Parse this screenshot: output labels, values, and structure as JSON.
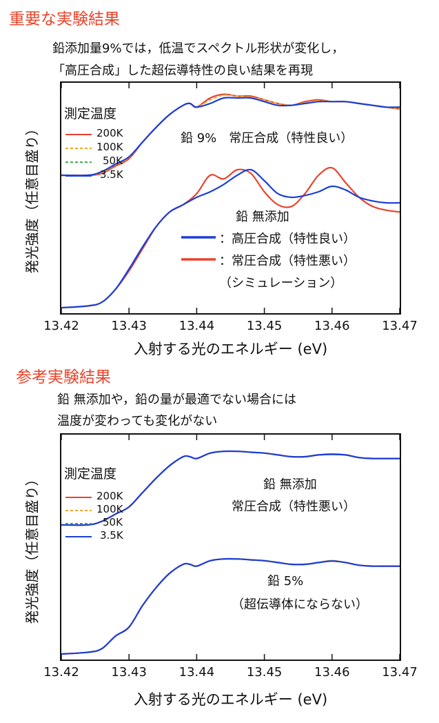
{
  "sections": [
    {
      "heading": "重要な実験結果",
      "caption_lines": [
        "鉛添加量9%では，低温でスペクトル形状が変化し，",
        "「高圧合成」した超伝導特性の良い結果を再現"
      ]
    },
    {
      "heading": "参考実験結果",
      "caption_lines": [
        "鉛 無添加や，鉛の量が最適でない場合には",
        "温度が変わっても変化がない"
      ]
    }
  ],
  "colors": {
    "heading": "#e8432a",
    "red": "#e8432a",
    "orange": "#f5a623",
    "green": "#3bb34a",
    "blue": "#1a3fd6",
    "frame": "#111111"
  },
  "chart_data": [
    {
      "type": "line",
      "title": "",
      "xlabel": "入射する光のエネルギー (eV)",
      "ylabel": "発光強度（任意目盛り）",
      "xlim": [
        13.42,
        13.47
      ],
      "ylim": [
        0,
        1.2
      ],
      "xticks": [
        "13.42",
        "13.43",
        "13.44",
        "13.45",
        "13.46",
        "13.47"
      ],
      "legend_title": "測定温度",
      "legend": [
        {
          "label": "200K",
          "color": "#e8432a",
          "style": "solid"
        },
        {
          "label": "100K",
          "color": "#f5a623",
          "style": "dashed"
        },
        {
          "label": "50K",
          "color": "#3bb34a",
          "style": "dashed"
        },
        {
          "label": "3.5K",
          "color": "#1a3fd6",
          "style": "solid"
        }
      ],
      "annotations": [
        {
          "id": "pb9",
          "text": "鉛 9%　常圧合成（特性良い）"
        },
        {
          "id": "none_title",
          "text": "鉛 無添加"
        },
        {
          "id": "none_high",
          "text": "：高圧合成（特性良い）",
          "color": "#1a3fd6"
        },
        {
          "id": "none_ambient",
          "text": "：常圧合成（特性悪い）",
          "color": "#e8432a"
        },
        {
          "id": "none_sim",
          "text": "（シミュレーション）"
        }
      ],
      "series": [
        {
          "name": "鉛9% 200K",
          "color": "#e8432a",
          "style": "solid",
          "x": [
            13.42,
            13.424,
            13.426,
            13.428,
            13.43,
            13.432,
            13.434,
            13.436,
            13.438,
            13.439,
            13.44,
            13.442,
            13.444,
            13.446,
            13.448,
            13.45,
            13.452,
            13.454,
            13.456,
            13.458,
            13.46,
            13.462,
            13.464,
            13.466,
            13.468,
            13.47
          ],
          "y": [
            0.72,
            0.72,
            0.73,
            0.77,
            0.81,
            0.9,
            0.98,
            1.05,
            1.1,
            1.11,
            1.09,
            1.14,
            1.16,
            1.15,
            1.15,
            1.13,
            1.11,
            1.1,
            1.12,
            1.13,
            1.12,
            1.12,
            1.11,
            1.1,
            1.09,
            1.08
          ]
        },
        {
          "name": "鉛9% 100K",
          "color": "#f5a623",
          "style": "dashed",
          "x": [
            13.42,
            13.424,
            13.426,
            13.428,
            13.43,
            13.432,
            13.434,
            13.436,
            13.438,
            13.439,
            13.44,
            13.442,
            13.444,
            13.446,
            13.448,
            13.45,
            13.452,
            13.454,
            13.456,
            13.458,
            13.46,
            13.462,
            13.464,
            13.466,
            13.468,
            13.47
          ],
          "y": [
            0.72,
            0.72,
            0.735,
            0.775,
            0.815,
            0.9,
            0.98,
            1.05,
            1.1,
            1.11,
            1.09,
            1.13,
            1.155,
            1.15,
            1.145,
            1.13,
            1.11,
            1.1,
            1.115,
            1.125,
            1.12,
            1.12,
            1.11,
            1.1,
            1.09,
            1.08
          ]
        },
        {
          "name": "鉛9% 50K",
          "color": "#3bb34a",
          "style": "dashed",
          "x": [
            13.42,
            13.424,
            13.426,
            13.428,
            13.43,
            13.432,
            13.434,
            13.436,
            13.438,
            13.439,
            13.44,
            13.442,
            13.444,
            13.446,
            13.448,
            13.45,
            13.452,
            13.454,
            13.456,
            13.458,
            13.46,
            13.462,
            13.464,
            13.466,
            13.468,
            13.47
          ],
          "y": [
            0.72,
            0.72,
            0.74,
            0.78,
            0.82,
            0.9,
            0.98,
            1.05,
            1.1,
            1.11,
            1.09,
            1.11,
            1.14,
            1.14,
            1.14,
            1.12,
            1.1,
            1.1,
            1.11,
            1.12,
            1.12,
            1.12,
            1.11,
            1.1,
            1.09,
            1.09
          ]
        },
        {
          "name": "鉛9% 3.5K",
          "color": "#1a3fd6",
          "style": "solid",
          "x": [
            13.42,
            13.424,
            13.426,
            13.428,
            13.43,
            13.432,
            13.434,
            13.436,
            13.438,
            13.439,
            13.44,
            13.442,
            13.444,
            13.446,
            13.448,
            13.45,
            13.452,
            13.454,
            13.456,
            13.458,
            13.46,
            13.462,
            13.464,
            13.466,
            13.468,
            13.47
          ],
          "y": [
            0.72,
            0.72,
            0.74,
            0.78,
            0.82,
            0.9,
            0.98,
            1.05,
            1.1,
            1.11,
            1.09,
            1.11,
            1.14,
            1.14,
            1.14,
            1.12,
            1.1,
            1.1,
            1.11,
            1.12,
            1.12,
            1.12,
            1.11,
            1.1,
            1.09,
            1.09
          ]
        },
        {
          "name": "鉛 無添加 常圧合成（シミュレーション）",
          "color": "#e8432a",
          "style": "solid",
          "x": [
            13.42,
            13.424,
            13.426,
            13.428,
            13.43,
            13.432,
            13.434,
            13.436,
            13.438,
            13.44,
            13.442,
            13.444,
            13.446,
            13.448,
            13.45,
            13.452,
            13.454,
            13.456,
            13.458,
            13.46,
            13.462,
            13.464,
            13.466,
            13.468,
            13.47
          ],
          "y": [
            0.0,
            0.01,
            0.03,
            0.1,
            0.2,
            0.32,
            0.44,
            0.52,
            0.56,
            0.62,
            0.72,
            0.7,
            0.75,
            0.73,
            0.63,
            0.56,
            0.55,
            0.62,
            0.72,
            0.76,
            0.68,
            0.6,
            0.55,
            0.53,
            0.52
          ]
        },
        {
          "name": "鉛 無添加 高圧合成",
          "color": "#1a3fd6",
          "style": "solid",
          "x": [
            13.42,
            13.424,
            13.426,
            13.428,
            13.43,
            13.432,
            13.434,
            13.436,
            13.438,
            13.44,
            13.442,
            13.444,
            13.446,
            13.448,
            13.45,
            13.452,
            13.454,
            13.456,
            13.458,
            13.46,
            13.462,
            13.464,
            13.466,
            13.468,
            13.47
          ],
          "y": [
            0.0,
            0.01,
            0.03,
            0.1,
            0.21,
            0.33,
            0.44,
            0.52,
            0.56,
            0.6,
            0.63,
            0.67,
            0.72,
            0.75,
            0.69,
            0.62,
            0.6,
            0.61,
            0.63,
            0.66,
            0.64,
            0.6,
            0.58,
            0.57,
            0.57
          ]
        }
      ]
    },
    {
      "type": "line",
      "title": "",
      "xlabel": "入射する光のエネルギー (eV)",
      "ylabel": "発光強度（任意目盛り）",
      "xlim": [
        13.42,
        13.47
      ],
      "ylim": [
        0,
        1.2
      ],
      "xticks": [
        "13.42",
        "13.43",
        "13.44",
        "13.45",
        "13.46",
        "13.47"
      ],
      "legend_title": "測定温度",
      "legend": [
        {
          "label": "200K",
          "color": "#e8432a",
          "style": "solid"
        },
        {
          "label": "100K",
          "color": "#f5a623",
          "style": "dashed"
        },
        {
          "label": "50K",
          "color": "#3bb34a",
          "style": "dashed"
        },
        {
          "label": "3.5K",
          "color": "#1a3fd6",
          "style": "solid"
        }
      ],
      "annotations": [
        {
          "id": "none_title",
          "text": "鉛 無添加"
        },
        {
          "id": "none_ambient",
          "text": "常圧合成（特性悪い）"
        },
        {
          "id": "pb5_title",
          "text": "鉛 5%"
        },
        {
          "id": "pb5_note",
          "text": "（超伝導体にならない）"
        }
      ],
      "series": [
        {
          "name": "鉛 無添加 200K",
          "color": "#e8432a",
          "style": "solid",
          "x": [
            13.42,
            13.424,
            13.426,
            13.428,
            13.43,
            13.432,
            13.434,
            13.436,
            13.438,
            13.439,
            13.44,
            13.442,
            13.444,
            13.446,
            13.448,
            13.45,
            13.452,
            13.454,
            13.456,
            13.458,
            13.46,
            13.462,
            13.464,
            13.466,
            13.468,
            13.47
          ],
          "y": [
            0.72,
            0.72,
            0.74,
            0.78,
            0.82,
            0.9,
            0.98,
            1.05,
            1.1,
            1.1,
            1.09,
            1.12,
            1.13,
            1.13,
            1.125,
            1.12,
            1.11,
            1.1,
            1.1,
            1.11,
            1.115,
            1.11,
            1.095,
            1.09,
            1.09,
            1.09
          ]
        },
        {
          "name": "鉛 無添加 100K",
          "color": "#f5a623",
          "style": "dashed",
          "x": [
            13.42,
            13.424,
            13.426,
            13.428,
            13.43,
            13.432,
            13.434,
            13.436,
            13.438,
            13.439,
            13.44,
            13.442,
            13.444,
            13.446,
            13.448,
            13.45,
            13.452,
            13.454,
            13.456,
            13.458,
            13.46,
            13.462,
            13.464,
            13.466,
            13.468,
            13.47
          ],
          "y": [
            0.72,
            0.72,
            0.74,
            0.78,
            0.82,
            0.9,
            0.98,
            1.05,
            1.1,
            1.1,
            1.09,
            1.12,
            1.13,
            1.13,
            1.125,
            1.12,
            1.11,
            1.1,
            1.1,
            1.11,
            1.115,
            1.11,
            1.095,
            1.09,
            1.09,
            1.09
          ]
        },
        {
          "name": "鉛 無添加 50K",
          "color": "#3bb34a",
          "style": "dashed",
          "x": [
            13.42,
            13.424,
            13.426,
            13.428,
            13.43,
            13.432,
            13.434,
            13.436,
            13.438,
            13.439,
            13.44,
            13.442,
            13.444,
            13.446,
            13.448,
            13.45,
            13.452,
            13.454,
            13.456,
            13.458,
            13.46,
            13.462,
            13.464,
            13.466,
            13.468,
            13.47
          ],
          "y": [
            0.72,
            0.72,
            0.74,
            0.78,
            0.82,
            0.9,
            0.98,
            1.05,
            1.1,
            1.1,
            1.09,
            1.12,
            1.13,
            1.13,
            1.125,
            1.12,
            1.11,
            1.1,
            1.1,
            1.11,
            1.115,
            1.11,
            1.095,
            1.09,
            1.09,
            1.09
          ]
        },
        {
          "name": "鉛 無添加 3.5K",
          "color": "#1a3fd6",
          "style": "solid",
          "x": [
            13.42,
            13.424,
            13.426,
            13.428,
            13.43,
            13.432,
            13.434,
            13.436,
            13.438,
            13.439,
            13.44,
            13.442,
            13.444,
            13.446,
            13.448,
            13.45,
            13.452,
            13.454,
            13.456,
            13.458,
            13.46,
            13.462,
            13.464,
            13.466,
            13.468,
            13.47
          ],
          "y": [
            0.72,
            0.72,
            0.74,
            0.78,
            0.82,
            0.9,
            0.98,
            1.05,
            1.1,
            1.1,
            1.09,
            1.12,
            1.13,
            1.13,
            1.125,
            1.12,
            1.11,
            1.1,
            1.1,
            1.11,
            1.113,
            1.11,
            1.095,
            1.09,
            1.09,
            1.09
          ]
        },
        {
          "name": "鉛5% 200K",
          "color": "#e8432a",
          "style": "solid",
          "x": [
            13.42,
            13.424,
            13.426,
            13.428,
            13.43,
            13.432,
            13.434,
            13.436,
            13.438,
            13.439,
            13.44,
            13.442,
            13.444,
            13.446,
            13.448,
            13.45,
            13.452,
            13.454,
            13.456,
            13.458,
            13.46,
            13.462,
            13.464,
            13.466,
            13.468,
            13.47
          ],
          "y": [
            0.0,
            0.01,
            0.03,
            0.1,
            0.15,
            0.27,
            0.37,
            0.45,
            0.5,
            0.5,
            0.49,
            0.52,
            0.53,
            0.53,
            0.525,
            0.52,
            0.51,
            0.5,
            0.5,
            0.51,
            0.52,
            0.51,
            0.495,
            0.49,
            0.49,
            0.49
          ]
        },
        {
          "name": "鉛5% 100K",
          "color": "#f5a623",
          "style": "dashed",
          "x": [
            13.42,
            13.424,
            13.426,
            13.428,
            13.43,
            13.432,
            13.434,
            13.436,
            13.438,
            13.439,
            13.44,
            13.442,
            13.444,
            13.446,
            13.448,
            13.45,
            13.452,
            13.454,
            13.456,
            13.458,
            13.46,
            13.462,
            13.464,
            13.466,
            13.468,
            13.47
          ],
          "y": [
            0.0,
            0.01,
            0.03,
            0.1,
            0.15,
            0.27,
            0.37,
            0.45,
            0.5,
            0.5,
            0.49,
            0.52,
            0.53,
            0.53,
            0.525,
            0.52,
            0.51,
            0.5,
            0.5,
            0.51,
            0.52,
            0.51,
            0.495,
            0.49,
            0.49,
            0.49
          ]
        },
        {
          "name": "鉛5% 50K",
          "color": "#3bb34a",
          "style": "dashed",
          "x": [
            13.42,
            13.424,
            13.426,
            13.428,
            13.43,
            13.432,
            13.434,
            13.436,
            13.438,
            13.439,
            13.44,
            13.442,
            13.444,
            13.446,
            13.448,
            13.45,
            13.452,
            13.454,
            13.456,
            13.458,
            13.46,
            13.462,
            13.464,
            13.466,
            13.468,
            13.47
          ],
          "y": [
            0.0,
            0.01,
            0.03,
            0.1,
            0.15,
            0.27,
            0.37,
            0.45,
            0.5,
            0.5,
            0.49,
            0.52,
            0.53,
            0.53,
            0.525,
            0.52,
            0.51,
            0.5,
            0.5,
            0.51,
            0.52,
            0.51,
            0.495,
            0.49,
            0.49,
            0.49
          ]
        },
        {
          "name": "鉛5% 3.5K",
          "color": "#1a3fd6",
          "style": "solid",
          "x": [
            13.42,
            13.424,
            13.426,
            13.428,
            13.43,
            13.432,
            13.434,
            13.436,
            13.438,
            13.439,
            13.44,
            13.442,
            13.444,
            13.446,
            13.448,
            13.45,
            13.452,
            13.454,
            13.456,
            13.458,
            13.46,
            13.462,
            13.464,
            13.466,
            13.468,
            13.47
          ],
          "y": [
            0.0,
            0.01,
            0.03,
            0.1,
            0.15,
            0.27,
            0.37,
            0.45,
            0.5,
            0.5,
            0.49,
            0.52,
            0.53,
            0.53,
            0.525,
            0.52,
            0.51,
            0.5,
            0.5,
            0.51,
            0.518,
            0.51,
            0.495,
            0.49,
            0.49,
            0.49
          ]
        }
      ]
    }
  ]
}
